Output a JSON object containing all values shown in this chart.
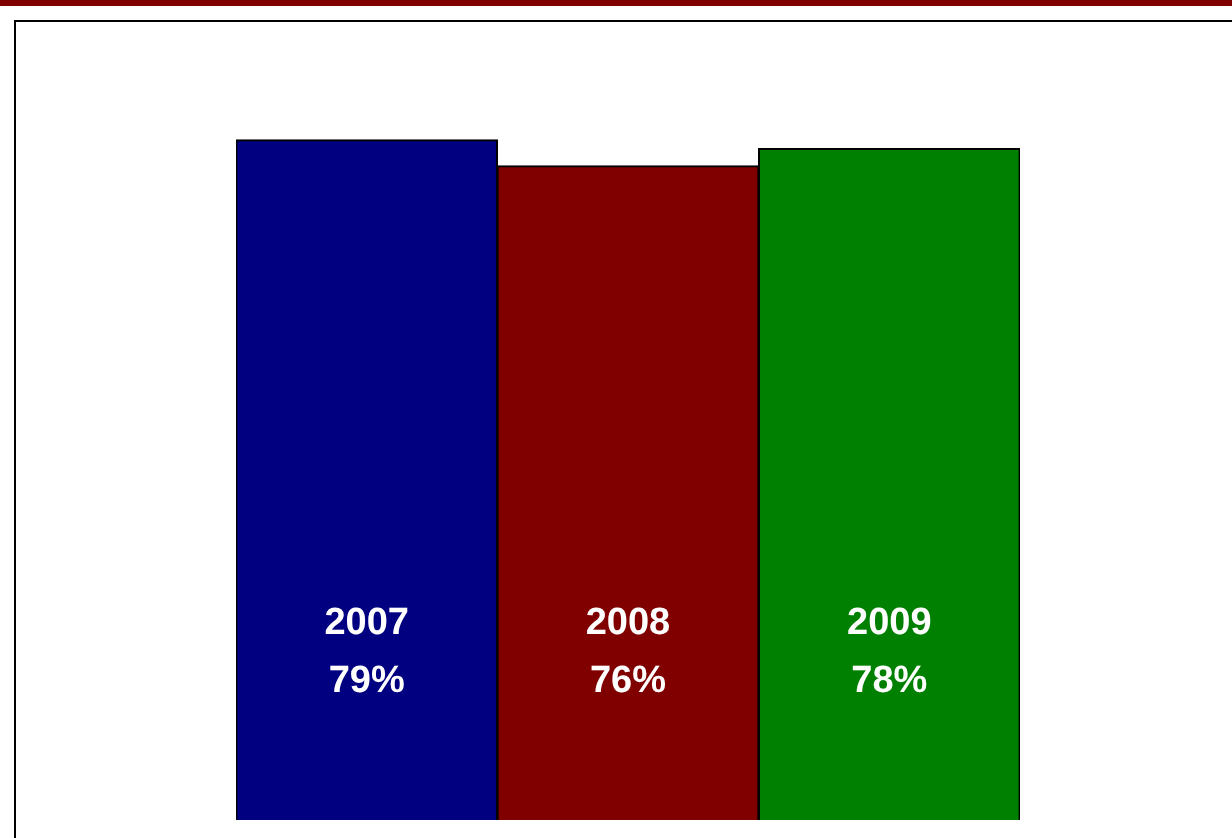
{
  "chart_data": {
    "type": "bar",
    "categories": [
      "2007",
      "2008",
      "2009"
    ],
    "values": [
      79,
      76,
      78
    ],
    "colors": [
      "#000080",
      "#800000",
      "#008000"
    ],
    "value_labels": [
      "79%",
      "76%",
      "78%"
    ]
  }
}
